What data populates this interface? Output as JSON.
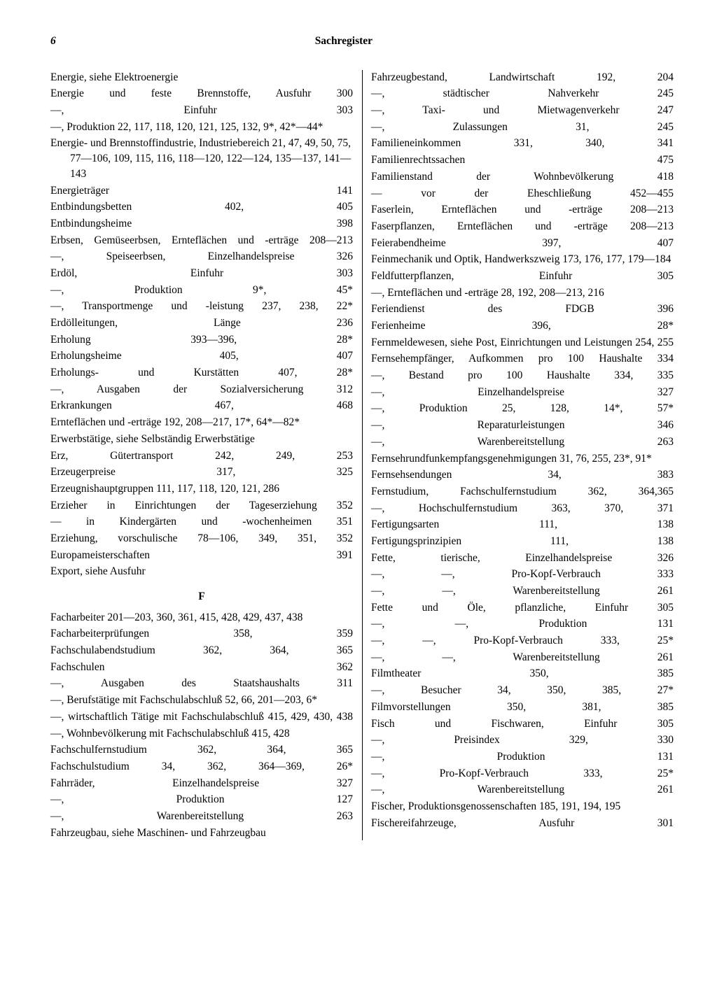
{
  "page_number": "6",
  "header_title": "Sachregister",
  "section_heading": "F",
  "left": [
    {
      "t": "Energie, siehe Elektroenergie",
      "r": "",
      "noref": true
    },
    {
      "t": "Energie und feste Brennstoffe, Ausfuhr",
      "r": "300"
    },
    {
      "t": "—, Einfuhr",
      "r": "303"
    },
    {
      "t": "—, Produktion 22, 117, 118, 120, 121, 125, 132, 9*, 42*—44*",
      "r": "",
      "noref": true
    },
    {
      "t": "Energie- und Brennstoffindustrie, Industriebereich 21, 47, 49, 50, 75, 77—106, 109, 115, 116, 118—120, 122—124, 135—137, 141—143",
      "r": "",
      "noref": true
    },
    {
      "t": "Energieträger",
      "r": "141"
    },
    {
      "t": "Entbindungsbetten",
      "r": "402, 405"
    },
    {
      "t": "Entbindungsheime",
      "r": "398"
    },
    {
      "t": "Erbsen, Gemüseerbsen, Ernteflächen und -erträge",
      "r": "208—213"
    },
    {
      "t": "—, Speiseerbsen, Einzelhandelspreise",
      "r": "326"
    },
    {
      "t": "Erdöl, Einfuhr",
      "r": "303"
    },
    {
      "t": "—, Produktion",
      "r": "9*, 45*"
    },
    {
      "t": "—, Transportmenge und -leistung",
      "r": "237, 238, 22*"
    },
    {
      "t": "Erdölleitungen, Länge",
      "r": "236"
    },
    {
      "t": "Erholung",
      "r": "393—396, 28*"
    },
    {
      "t": "Erholungsheime",
      "r": "405, 407"
    },
    {
      "t": "Erholungs- und Kurstätten",
      "r": "407, 28*"
    },
    {
      "t": "—, Ausgaben der Sozialversicherung",
      "r": "312"
    },
    {
      "t": "Erkrankungen",
      "r": "467, 468"
    },
    {
      "t": "Ernteflächen und -erträge 192, 208—217, 17*, 64*—82*",
      "r": "",
      "noref": true
    },
    {
      "t": "Erwerbstätige, siehe Selbständig Erwerbstätige",
      "r": "",
      "noref": true
    },
    {
      "t": "Erz, Gütertransport",
      "r": "242, 249, 253"
    },
    {
      "t": "Erzeugerpreise",
      "r": "317, 325"
    },
    {
      "t": "Erzeugnishauptgruppen 111, 117, 118, 120, 121, 286",
      "r": "",
      "noref": true
    },
    {
      "t": "Erzieher in Einrichtungen der Tageserziehung",
      "r": "352"
    },
    {
      "t": "— in Kindergärten und -wochenheimen",
      "r": "351"
    },
    {
      "t": "Erziehung, vorschulische 78—106, 349, 351,",
      "r": "352"
    },
    {
      "t": "Europameisterschaften",
      "r": "391"
    },
    {
      "t": "Export, siehe Ausfuhr",
      "r": "",
      "noref": true
    },
    {
      "section": true
    },
    {
      "t": "Facharbeiter 201—203, 360, 361, 415, 428, 429, 437, 438",
      "r": "",
      "noref": true
    },
    {
      "t": "Facharbeiterprüfungen",
      "r": "358, 359"
    },
    {
      "t": "Fachschulabendstudium",
      "r": "362, 364, 365"
    },
    {
      "t": "Fachschulen",
      "r": "362"
    },
    {
      "t": "—, Ausgaben des Staatshaushalts",
      "r": "311"
    },
    {
      "t": "—, Berufstätige mit Fachschulabschluß 52, 66, 201—203, 6*",
      "r": "",
      "noref": true
    },
    {
      "t": "—, wirtschaftlich Tätige mit Fachschulabschluß",
      "r": "415, 429, 430, 438"
    },
    {
      "t": "—, Wohnbevölkerung mit Fachschulabschluß 415, 428",
      "r": "",
      "noref": true
    },
    {
      "t": "Fachschulfernstudium",
      "r": "362, 364, 365"
    },
    {
      "t": "Fachschulstudium",
      "r": "34, 362, 364—369, 26*"
    },
    {
      "t": "Fahrräder, Einzelhandelspreise",
      "r": "327"
    },
    {
      "t": "—, Produktion",
      "r": "127"
    },
    {
      "t": "—, Warenbereitstellung",
      "r": "263"
    }
  ],
  "right": [
    {
      "t": "Fahrzeugbau, siehe Maschinen- und Fahrzeugbau",
      "r": "",
      "noref": true
    },
    {
      "t": "Fahrzeugbestand, Landwirtschaft",
      "r": "192, 204"
    },
    {
      "t": "—, städtischer Nahverkehr",
      "r": "245"
    },
    {
      "t": "—, Taxi- und Mietwagenverkehr",
      "r": "247"
    },
    {
      "t": "—, Zulassungen",
      "r": "31, 245"
    },
    {
      "t": "Familieneinkommen",
      "r": "331, 340, 341"
    },
    {
      "t": "Familienrechtssachen",
      "r": "475"
    },
    {
      "t": "Familienstand der Wohnbevölkerung",
      "r": "418"
    },
    {
      "t": "— vor der Eheschließung",
      "r": "452—455"
    },
    {
      "t": "Faserlein, Ernteflächen und -erträge",
      "r": "208—213"
    },
    {
      "t": "Faserpflanzen, Ernteflächen und -erträge",
      "r": "208—213"
    },
    {
      "t": "Feierabendheime",
      "r": "397, 407"
    },
    {
      "t": "Feinmechanik und Optik, Handwerkszweig 173, 176, 177, 179—184",
      "r": "",
      "noref": true
    },
    {
      "t": "Feldfutterpflanzen, Einfuhr",
      "r": "305"
    },
    {
      "t": "—, Ernteflächen und -erträge 28, 192, 208—213, 216",
      "r": "",
      "noref": true
    },
    {
      "t": "Feriendienst des FDGB",
      "r": "396"
    },
    {
      "t": "Ferienheime",
      "r": "396, 28*"
    },
    {
      "t": "Fernmeldewesen, siehe Post, Einrichtungen und Leistungen",
      "r": "254, 255"
    },
    {
      "t": "Fernsehempfänger, Aufkommen pro 100 Haushalte",
      "r": "334"
    },
    {
      "t": "—, Bestand pro 100 Haushalte",
      "r": "334, 335"
    },
    {
      "t": "—, Einzelhandelspreise",
      "r": "327"
    },
    {
      "t": "—, Produktion",
      "r": "25, 128, 14*, 57*"
    },
    {
      "t": "—, Reparaturleistungen",
      "r": "346"
    },
    {
      "t": "—, Warenbereitstellung",
      "r": "263"
    },
    {
      "t": "Fernsehrundfunkempfangsgenehmigungen 31, 76, 255, 23*, 91*",
      "r": "",
      "noref": true
    },
    {
      "t": "Fernsehsendungen",
      "r": "34, 383"
    },
    {
      "t": "Fernstudium, Fachschulfernstudium",
      "r": "362, 364,365"
    },
    {
      "t": "—, Hochschulfernstudium",
      "r": "363, 370, 371"
    },
    {
      "t": "Fertigungsarten",
      "r": "111, 138"
    },
    {
      "t": "Fertigungsprinzipien",
      "r": "111, 138"
    },
    {
      "t": "Fette, tierische, Einzelhandelspreise",
      "r": "326"
    },
    {
      "t": "—, —, Pro-Kopf-Verbrauch",
      "r": "333"
    },
    {
      "t": "—, —, Warenbereitstellung",
      "r": "261"
    },
    {
      "t": "Fette und Öle, pflanzliche, Einfuhr",
      "r": "305"
    },
    {
      "t": "—, —, Produktion",
      "r": "131"
    },
    {
      "t": "—, —, Pro-Kopf-Verbrauch",
      "r": "333, 25*"
    },
    {
      "t": "—, —, Warenbereitstellung",
      "r": "261"
    },
    {
      "t": "Filmtheater",
      "r": "350, 385"
    },
    {
      "t": "—, Besucher",
      "r": "34, 350, 385, 27*"
    },
    {
      "t": "Filmvorstellungen",
      "r": "350, 381, 385"
    },
    {
      "t": "Fisch und Fischwaren, Einfuhr",
      "r": "305"
    },
    {
      "t": "—, Preisindex",
      "r": "329, 330"
    },
    {
      "t": "—, Produktion",
      "r": "131"
    },
    {
      "t": "—, Pro-Kopf-Verbrauch",
      "r": "333, 25*"
    },
    {
      "t": "—, Warenbereitstellung",
      "r": "261"
    },
    {
      "t": "Fischer, Produktionsgenossenschaften 185, 191, 194, 195",
      "r": "",
      "noref": true
    },
    {
      "t": "Fischereifahrzeuge, Ausfuhr",
      "r": "301"
    }
  ]
}
